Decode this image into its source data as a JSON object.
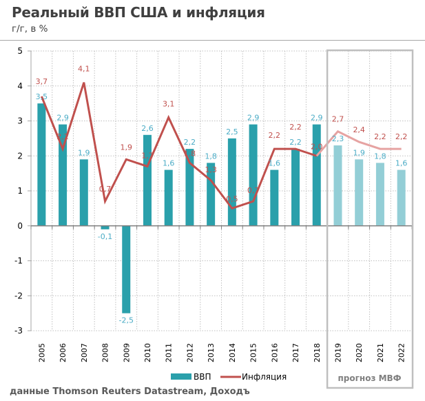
{
  "header": {
    "title": "Реальный ВВП США и инфляция",
    "subtitle": "г/г, в %"
  },
  "footer": {
    "source": "данные Thomson Reuters Datastream, Доходъ"
  },
  "chart_data": {
    "type": "bar",
    "title": "Реальный ВВП США и инфляция",
    "subtitle": "г/г, в %",
    "xlabel": "",
    "ylabel": "",
    "ylim": [
      -3,
      5
    ],
    "yticks": [
      "5",
      "4",
      "3",
      "2",
      "1",
      "0",
      "-1",
      "-2",
      "-3"
    ],
    "grid": true,
    "categories": [
      "2005",
      "2006",
      "2007",
      "2008",
      "2009",
      "2010",
      "2011",
      "2012",
      "2013",
      "2014",
      "2015",
      "2016",
      "2017",
      "2018",
      "2019",
      "2020",
      "2021",
      "2022"
    ],
    "series": [
      {
        "name": "ВВП",
        "type": "bar",
        "color": "#2aa0ab",
        "forecast_color": "#93ced6",
        "label_color": "#4bacc6",
        "values": [
          3.5,
          2.9,
          1.9,
          -0.1,
          -2.5,
          2.6,
          1.6,
          2.2,
          1.8,
          2.5,
          2.9,
          1.6,
          2.2,
          2.9,
          2.3,
          1.9,
          1.8,
          1.6
        ],
        "labels": [
          "3,5",
          "2,9",
          "1,9",
          "-0,1",
          "-2,5",
          "2,6",
          "1,6",
          "2,2",
          "1,8",
          "2,5",
          "2,9",
          "1,6",
          "2,2",
          "2,9",
          "2,3",
          "1,9",
          "1,8",
          "1,6"
        ]
      },
      {
        "name": "Инфляция",
        "type": "line",
        "color": "#c0504d",
        "forecast_color": "#e6a3a2",
        "label_color": "#c0504d",
        "values": [
          3.7,
          2.2,
          4.1,
          0.7,
          1.9,
          1.7,
          3.1,
          1.8,
          1.3,
          0.5,
          0.7,
          2.2,
          2.2,
          2.0,
          2.7,
          2.4,
          2.2,
          2.2
        ],
        "labels": [
          "3,7",
          "2,2",
          "4,1",
          "0,7",
          "1,9",
          "1,7",
          "3,1",
          "1,8",
          "1,3",
          "0,5",
          "0,7",
          "2,2",
          "2,2",
          "2,0",
          "2,7",
          "2,4",
          "2,2",
          "2,2"
        ]
      }
    ],
    "forecast": {
      "label": "прогноз МВФ",
      "from_category": "2019",
      "to_category": "2022"
    },
    "legend": {
      "position": "bottom",
      "entries": [
        "ВВП",
        "Инфляция"
      ]
    }
  }
}
